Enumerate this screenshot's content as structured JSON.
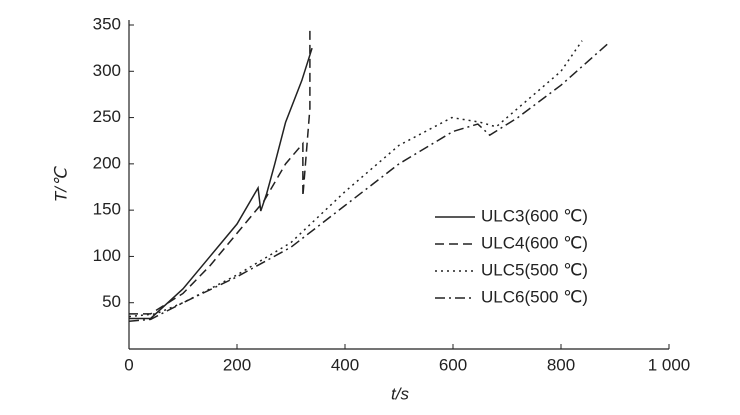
{
  "chart_data": {
    "type": "line",
    "x_label": "t/s",
    "y_label": "T/℃",
    "xlim": [
      0,
      1000
    ],
    "ylim": [
      0,
      350
    ],
    "xticks": [
      0,
      200,
      400,
      600,
      800,
      {
        "value": 1000,
        "label": "1 000"
      }
    ],
    "yticks": [
      50,
      100,
      150,
      200,
      250,
      300,
      350
    ],
    "legend": "right",
    "series": [
      {
        "name": "ULC3(600 ℃)",
        "color": "#222222",
        "style": "solid",
        "x": [
          0,
          40,
          100,
          150,
          200,
          239,
          244,
          255,
          270,
          290,
          320,
          339
        ],
        "values": [
          33,
          33,
          65,
          100,
          135,
          174,
          149,
          168,
          200,
          245,
          290,
          325
        ]
      },
      {
        "name": "ULC4(600 ℃)",
        "color": "#222222",
        "style": "dashed",
        "x": [
          0,
          40,
          100,
          150,
          200,
          250,
          290,
          322,
          322,
          335,
          335
        ],
        "values": [
          38,
          38,
          60,
          90,
          125,
          160,
          200,
          222,
          165,
          260,
          344
        ]
      },
      {
        "name": "ULC5(500 ℃)",
        "color": "#222222",
        "style": "dotted",
        "x": [
          0,
          50,
          100,
          200,
          300,
          400,
          500,
          598,
          650,
          680,
          700,
          800,
          839
        ],
        "values": [
          35,
          38,
          50,
          80,
          115,
          170,
          220,
          250,
          245,
          240,
          250,
          300,
          333
        ]
      },
      {
        "name": "ULC6(500 ℃)",
        "color": "#222222",
        "style": "dashdot",
        "x": [
          0,
          40,
          100,
          200,
          300,
          400,
          500,
          600,
          646,
          668,
          720,
          800,
          889
        ],
        "values": [
          30,
          32,
          50,
          78,
          110,
          155,
          200,
          235,
          243,
          231,
          250,
          285,
          331
        ]
      }
    ]
  }
}
